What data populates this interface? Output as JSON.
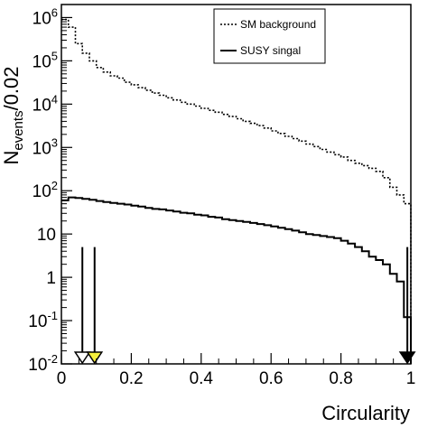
{
  "chart_data": {
    "type": "line",
    "title": "",
    "xlabel": "Circularity",
    "ylabel": "N",
    "ylabel_sub": "events",
    "ylabel_suffix": "/0.02",
    "xlim": [
      0,
      1
    ],
    "ylim": [
      0.01,
      2000000
    ],
    "yscale": "log",
    "grid": false,
    "legend_position": "top-right",
    "x_ticks": [
      {
        "value": 0,
        "label": "0"
      },
      {
        "value": 0.2,
        "label": "0.2"
      },
      {
        "value": 0.4,
        "label": "0.4"
      },
      {
        "value": 0.6,
        "label": "0.6"
      },
      {
        "value": 0.8,
        "label": "0.8"
      },
      {
        "value": 1,
        "label": "1"
      }
    ],
    "y_ticks": [
      {
        "value": 0.01,
        "base": "10",
        "exp": "-2"
      },
      {
        "value": 0.1,
        "base": "10",
        "exp": "-1"
      },
      {
        "value": 1,
        "base": "1",
        "exp": ""
      },
      {
        "value": 10,
        "base": "10",
        "exp": ""
      },
      {
        "value": 100,
        "base": "10",
        "exp": "2"
      },
      {
        "value": 1000,
        "base": "10",
        "exp": "3"
      },
      {
        "value": 10000,
        "base": "10",
        "exp": "4"
      },
      {
        "value": 100000,
        "base": "10",
        "exp": "5"
      },
      {
        "value": 1000000,
        "base": "10",
        "exp": "6"
      }
    ],
    "series": [
      {
        "name": "SM background",
        "style": "dashed",
        "x": [
          0.0,
          0.02,
          0.04,
          0.06,
          0.08,
          0.1,
          0.12,
          0.14,
          0.16,
          0.18,
          0.2,
          0.22,
          0.24,
          0.26,
          0.28,
          0.3,
          0.32,
          0.34,
          0.36,
          0.38,
          0.4,
          0.42,
          0.44,
          0.46,
          0.48,
          0.5,
          0.52,
          0.54,
          0.56,
          0.58,
          0.6,
          0.62,
          0.64,
          0.66,
          0.68,
          0.7,
          0.72,
          0.74,
          0.76,
          0.78,
          0.8,
          0.82,
          0.84,
          0.86,
          0.88,
          0.9,
          0.92,
          0.94,
          0.96,
          0.98
        ],
        "values": [
          900000,
          600000,
          250000,
          150000,
          100000,
          70000,
          55000,
          45000,
          40000,
          32000,
          28000,
          24000,
          21000,
          18000,
          16000,
          14000,
          12500,
          11000,
          10000,
          9000,
          8000,
          7200,
          6500,
          5800,
          5200,
          4600,
          4000,
          3600,
          3200,
          2800,
          2400,
          2100,
          1800,
          1600,
          1400,
          1200,
          1050,
          900,
          780,
          680,
          600,
          500,
          430,
          380,
          330,
          280,
          200,
          120,
          80,
          50
        ]
      },
      {
        "name": "SUSY singal",
        "style": "solid",
        "x": [
          0.0,
          0.02,
          0.04,
          0.06,
          0.08,
          0.1,
          0.12,
          0.14,
          0.16,
          0.18,
          0.2,
          0.22,
          0.24,
          0.26,
          0.28,
          0.3,
          0.32,
          0.34,
          0.36,
          0.38,
          0.4,
          0.42,
          0.44,
          0.46,
          0.48,
          0.5,
          0.52,
          0.54,
          0.56,
          0.58,
          0.6,
          0.62,
          0.64,
          0.66,
          0.68,
          0.7,
          0.72,
          0.74,
          0.76,
          0.78,
          0.8,
          0.82,
          0.84,
          0.86,
          0.88,
          0.9,
          0.92,
          0.94,
          0.96,
          0.98
        ],
        "values": [
          60,
          70,
          68,
          65,
          62,
          58,
          55,
          52,
          50,
          48,
          45,
          43,
          40,
          38,
          37,
          35,
          33,
          31,
          30,
          28,
          27,
          25,
          24,
          22,
          21,
          20,
          19,
          18,
          17,
          16,
          15,
          14,
          13,
          12,
          11,
          10,
          9.5,
          9,
          8.5,
          8,
          7,
          6,
          5,
          4,
          3,
          2.5,
          2,
          1.2,
          0.8,
          0.12
        ]
      }
    ],
    "annotations": [
      {
        "type": "arrow",
        "x": 0.06,
        "y_from": 5,
        "y_to": 0.01,
        "fill": "#ffffff"
      },
      {
        "type": "arrow",
        "x": 0.095,
        "y_from": 5,
        "y_to": 0.01,
        "fill": "#f5ef3b"
      },
      {
        "type": "arrow",
        "x": 0.99,
        "y_from": 5,
        "y_to": 0.01,
        "fill": "#000000"
      }
    ]
  },
  "legend": {
    "items": [
      {
        "label": "SM background",
        "style": "dashed"
      },
      {
        "label": "SUSY singal",
        "style": "solid"
      }
    ]
  },
  "colors": {
    "line": "#000000",
    "yellow_arrow": "#f5ef3b",
    "background": "#ffffff"
  }
}
